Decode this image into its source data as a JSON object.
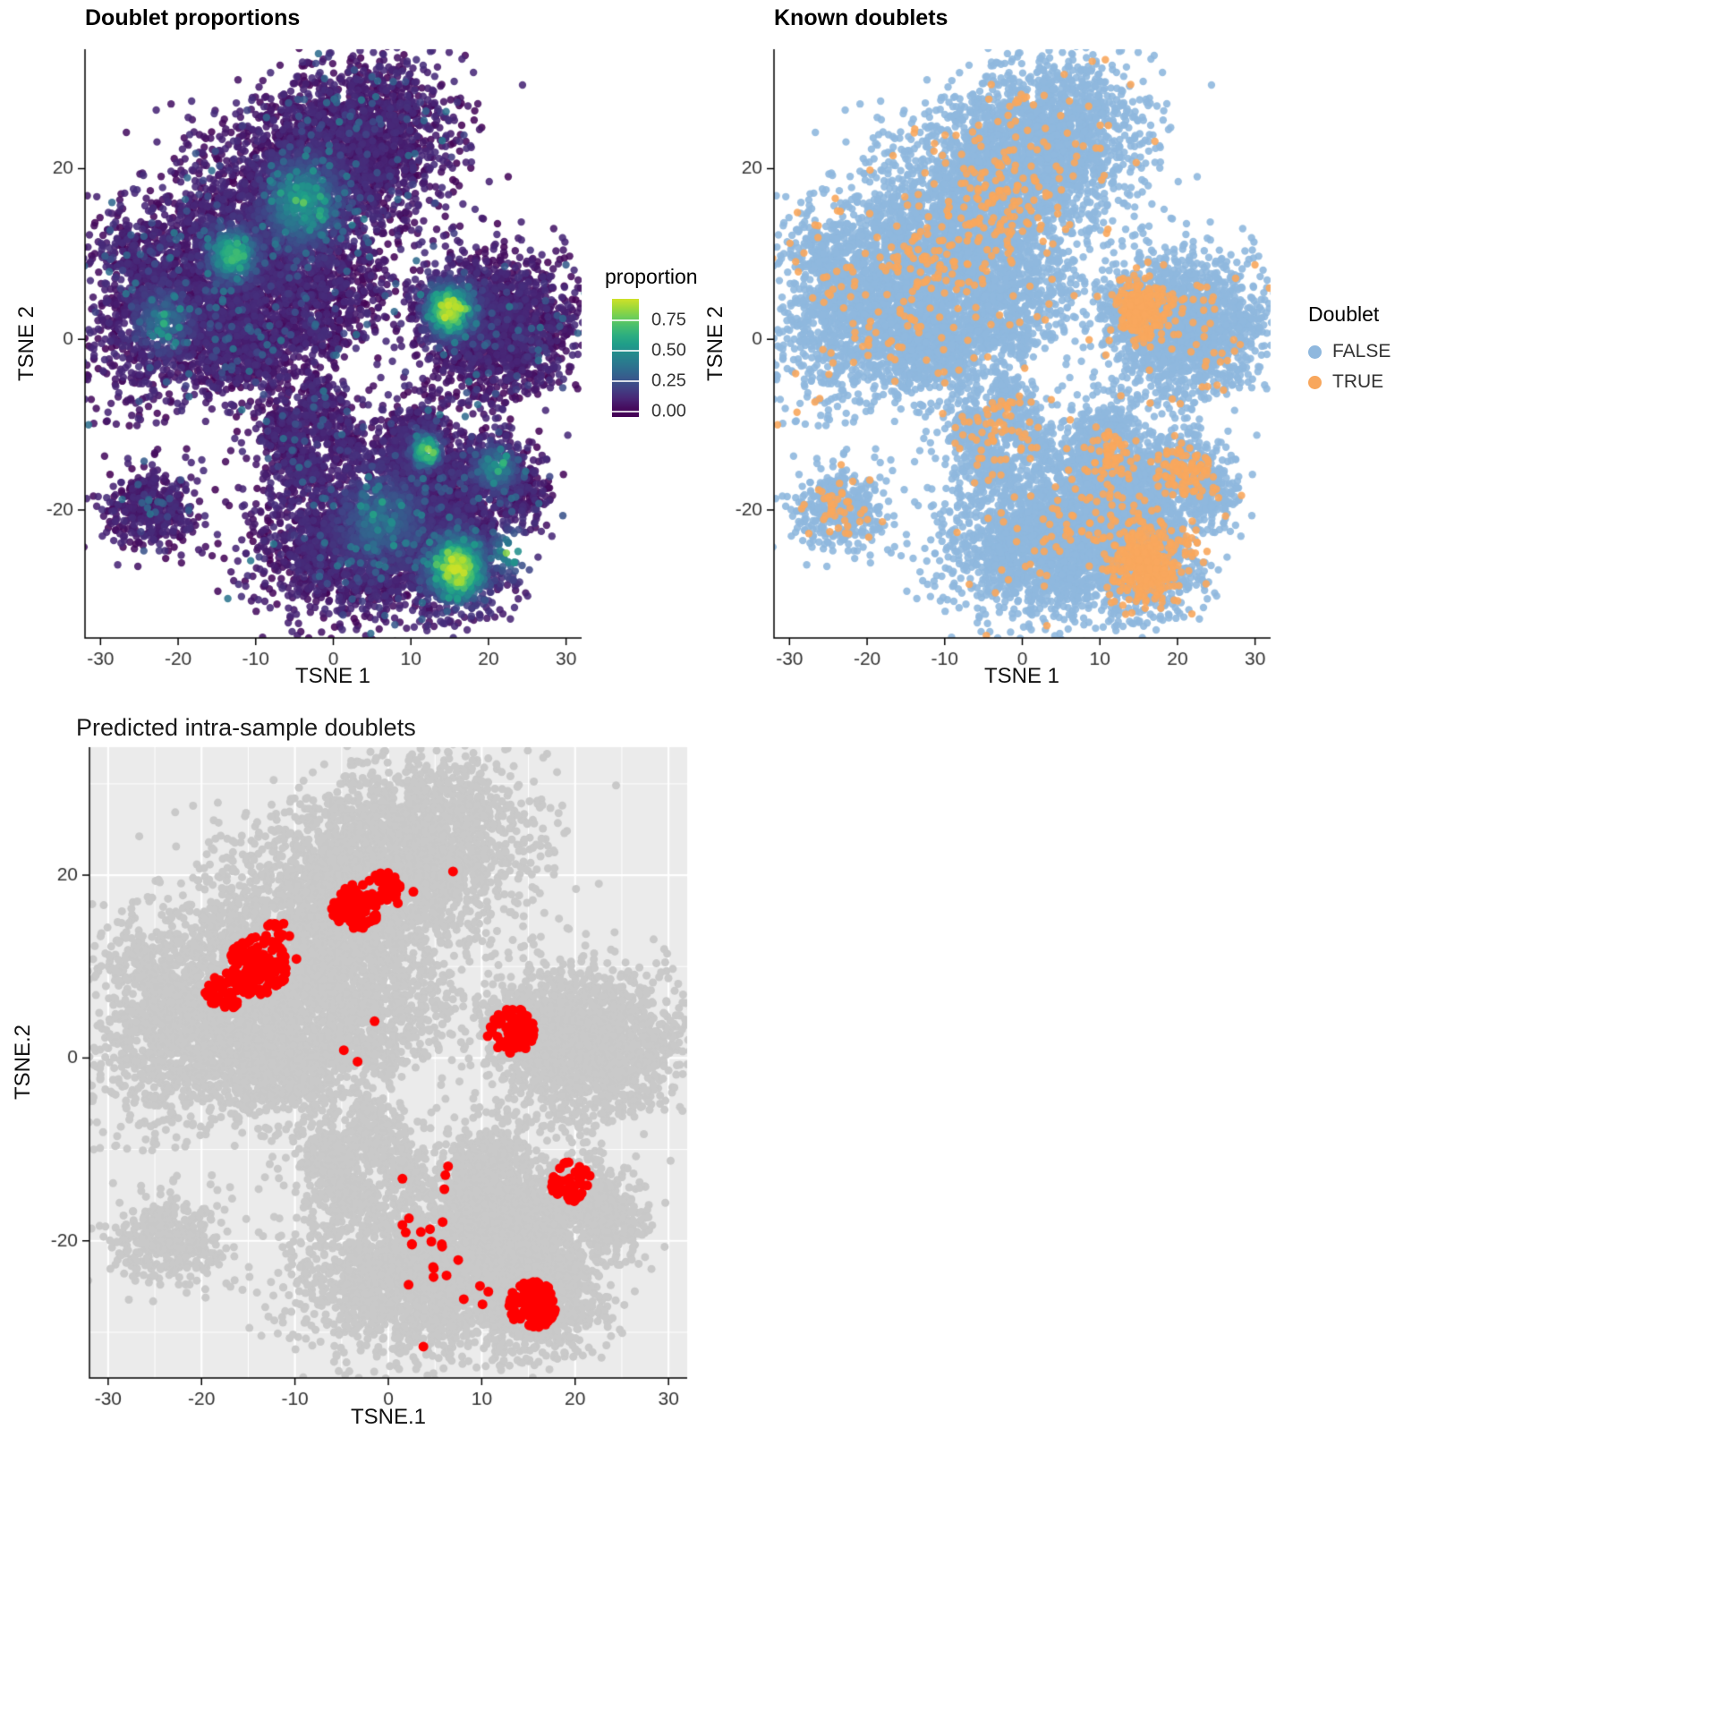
{
  "panels": {
    "doublet_proportions": {
      "title": "Doublet proportions",
      "xlabel": "TSNE 1",
      "ylabel": "TSNE 2",
      "legend": {
        "title": "proportion",
        "ticks": [
          "0.75",
          "0.50",
          "0.25",
          "0.00"
        ]
      }
    },
    "known_doublets": {
      "title": "Known doublets",
      "xlabel": "TSNE 1",
      "ylabel": "TSNE 2",
      "legend": {
        "title": "Doublet",
        "entries": [
          {
            "label": "FALSE"
          },
          {
            "label": "TRUE"
          }
        ]
      }
    },
    "predicted": {
      "title": "Predicted intra-sample doublets",
      "xlabel": "TSNE.1",
      "ylabel": "TSNE.2"
    }
  },
  "chart_data": {
    "type": "scatter",
    "description": "Three t-SNE panels sharing one embedding of ~15k cells: (1) cells colored by neighborhood doublet proportion on a viridis scale, (2) known doublets TRUE (orange) vs FALSE (blue), (3) predicted intra-sample doublets in red over grey cells on a grey ggplot panel.",
    "axes": {
      "xlim": [
        -32,
        32
      ],
      "ylim": [
        -35,
        34
      ],
      "x_ticks": [
        -30,
        -20,
        -10,
        0,
        10,
        20,
        30
      ],
      "y_ticks": [
        -20,
        0,
        20
      ]
    },
    "colors": {
      "viridis_stops": [
        {
          "t": 0.0,
          "c": "#440154"
        },
        {
          "t": 0.11,
          "c": "#482878"
        },
        {
          "t": 0.22,
          "c": "#3E4A89"
        },
        {
          "t": 0.33,
          "c": "#31688E"
        },
        {
          "t": 0.44,
          "c": "#26828E"
        },
        {
          "t": 0.56,
          "c": "#1F9E89"
        },
        {
          "t": 0.67,
          "c": "#35B779"
        },
        {
          "t": 0.78,
          "c": "#6ECE58"
        },
        {
          "t": 0.89,
          "c": "#B5DE2B"
        },
        {
          "t": 1.0,
          "c": "#FDE725"
        }
      ],
      "doublet_false": "#8FB8DE",
      "doublet_true": "#F8A75D",
      "predicted_grey": "#C9C9C9",
      "predicted_red": "#FF0000",
      "panel_bg_grey": "#EBEBEB",
      "gridline": "#FFFFFF",
      "tick_text": "#333333"
    },
    "proportion_scale": {
      "min": 0.0,
      "max": 0.93
    },
    "clusters": [
      {
        "cx": -17,
        "cy": 5,
        "sx": 7.5,
        "sy": 5,
        "rot": 35,
        "n": 2000
      },
      {
        "cx": -5,
        "cy": 15,
        "sx": 8,
        "sy": 6,
        "rot": 25,
        "n": 2400
      },
      {
        "cx": 3,
        "cy": 24,
        "sx": 6,
        "sy": 4.5,
        "rot": 20,
        "n": 1500
      },
      {
        "cx": -11,
        "cy": -1,
        "sx": 4.5,
        "sy": 3,
        "rot": 0,
        "n": 600
      },
      {
        "cx": -2,
        "cy": 4,
        "sx": 4,
        "sy": 3.5,
        "rot": 0,
        "n": 450
      },
      {
        "cx": -24,
        "cy": 9,
        "sx": 3,
        "sy": 4,
        "rot": 40,
        "n": 350
      },
      {
        "cx": -6,
        "cy": -11,
        "sx": 2.2,
        "sy": 2.2,
        "rot": 0,
        "n": 260
      },
      {
        "cx": -2,
        "cy": -8,
        "sx": 2,
        "sy": 2,
        "rot": 0,
        "n": 200
      },
      {
        "cx": -3.5,
        "cy": -15,
        "sx": 1.8,
        "sy": 1.5,
        "rot": 0,
        "n": 140
      },
      {
        "cx": 1.5,
        "cy": -12,
        "sx": 1.6,
        "sy": 1.6,
        "rot": 0,
        "n": 120
      },
      {
        "cx": 21.5,
        "cy": 1.5,
        "sx": 4.6,
        "sy": 4,
        "rot": 0,
        "n": 1600
      },
      {
        "cx": 15,
        "cy": 3.5,
        "sx": 2.3,
        "sy": 2.3,
        "rot": 0,
        "n": 420
      },
      {
        "cx": -23.5,
        "cy": -20,
        "sx": 2.9,
        "sy": 2.4,
        "rot": 0,
        "n": 430
      },
      {
        "cx": 3,
        "cy": -24,
        "sx": 6.5,
        "sy": 4.3,
        "rot": 0,
        "n": 1900
      },
      {
        "cx": 12,
        "cy": -19,
        "sx": 5,
        "sy": 3.8,
        "rot": 0,
        "n": 1300
      },
      {
        "cx": 16,
        "cy": -26.5,
        "sx": 3.4,
        "sy": 3,
        "rot": 0,
        "n": 850
      },
      {
        "cx": 10.5,
        "cy": -12,
        "sx": 2.4,
        "sy": 2.4,
        "rot": 0,
        "n": 380
      },
      {
        "cx": 20,
        "cy": -14.5,
        "sx": 2.6,
        "sy": 2,
        "rot": 0,
        "n": 330
      },
      {
        "cx": 24,
        "cy": -18,
        "sx": 2,
        "sy": 1.8,
        "rot": 0,
        "n": 220
      },
      {
        "cx": 0,
        "cy": -2,
        "sx": 15,
        "sy": 13,
        "rot": 0,
        "n": 110
      }
    ],
    "proportion_hotspots": [
      {
        "cx": 15,
        "cy": 3.5,
        "r": 2.6,
        "v": 0.8
      },
      {
        "cx": 16,
        "cy": -27,
        "r": 3.2,
        "v": 0.85
      },
      {
        "cx": -13,
        "cy": 10,
        "r": 2.6,
        "v": 0.6
      },
      {
        "cx": -4,
        "cy": 16,
        "r": 4,
        "v": 0.45
      },
      {
        "cx": 12,
        "cy": -13,
        "r": 1.6,
        "v": 0.7
      },
      {
        "cx": 6,
        "cy": -21,
        "r": 4.5,
        "v": 0.25
      },
      {
        "cx": 21,
        "cy": -15,
        "r": 2.2,
        "v": 0.4
      },
      {
        "cx": -22,
        "cy": 2,
        "r": 3,
        "v": 0.3
      },
      {
        "cx": 23,
        "cy": -25,
        "r": 2.5,
        "v": 0.45
      }
    ],
    "true_hotspots": [
      {
        "cx": 15,
        "cy": 3.5,
        "r": 2.6,
        "v": 0.8
      },
      {
        "cx": 16,
        "cy": -27,
        "r": 3.2,
        "v": 0.8
      },
      {
        "cx": 12,
        "cy": -13,
        "r": 1.6,
        "v": 0.5
      },
      {
        "cx": 21,
        "cy": -15,
        "r": 2.4,
        "v": 0.45
      },
      {
        "cx": 23,
        "cy": -25,
        "r": 2.5,
        "v": 0.35
      },
      {
        "cx": -24,
        "cy": -20,
        "r": 3,
        "v": 0.14
      },
      {
        "cx": -4,
        "cy": 16,
        "r": 5,
        "v": 0.1
      },
      {
        "cx": -13,
        "cy": 10,
        "r": 3,
        "v": 0.12
      },
      {
        "cx": -2,
        "cy": -9,
        "r": 4,
        "v": 0.12
      }
    ],
    "predicted_red_regions": [
      {
        "cx": -14,
        "cy": 10,
        "r": 3.2,
        "p": 0.45
      },
      {
        "cx": -17.5,
        "cy": 7.5,
        "r": 2.2,
        "p": 0.35
      },
      {
        "cx": -3.5,
        "cy": 16.5,
        "r": 2.6,
        "p": 0.5
      },
      {
        "cx": -0.5,
        "cy": 18.5,
        "r": 1.8,
        "p": 0.35
      },
      {
        "cx": -12,
        "cy": 13.5,
        "r": 1.5,
        "p": 0.3
      },
      {
        "cx": 13,
        "cy": 3,
        "r": 2.6,
        "p": 0.45
      },
      {
        "cx": 15.5,
        "cy": -27,
        "r": 2.6,
        "p": 0.5
      },
      {
        "cx": 19.5,
        "cy": -13.5,
        "r": 2.2,
        "p": 0.4
      },
      {
        "cx": 4,
        "cy": -16,
        "r": 5,
        "p": 0.03
      },
      {
        "cx": 6,
        "cy": -27,
        "r": 6,
        "p": 0.015
      },
      {
        "cx": 2,
        "cy": 10,
        "r": 12,
        "p": 0.006
      }
    ]
  }
}
